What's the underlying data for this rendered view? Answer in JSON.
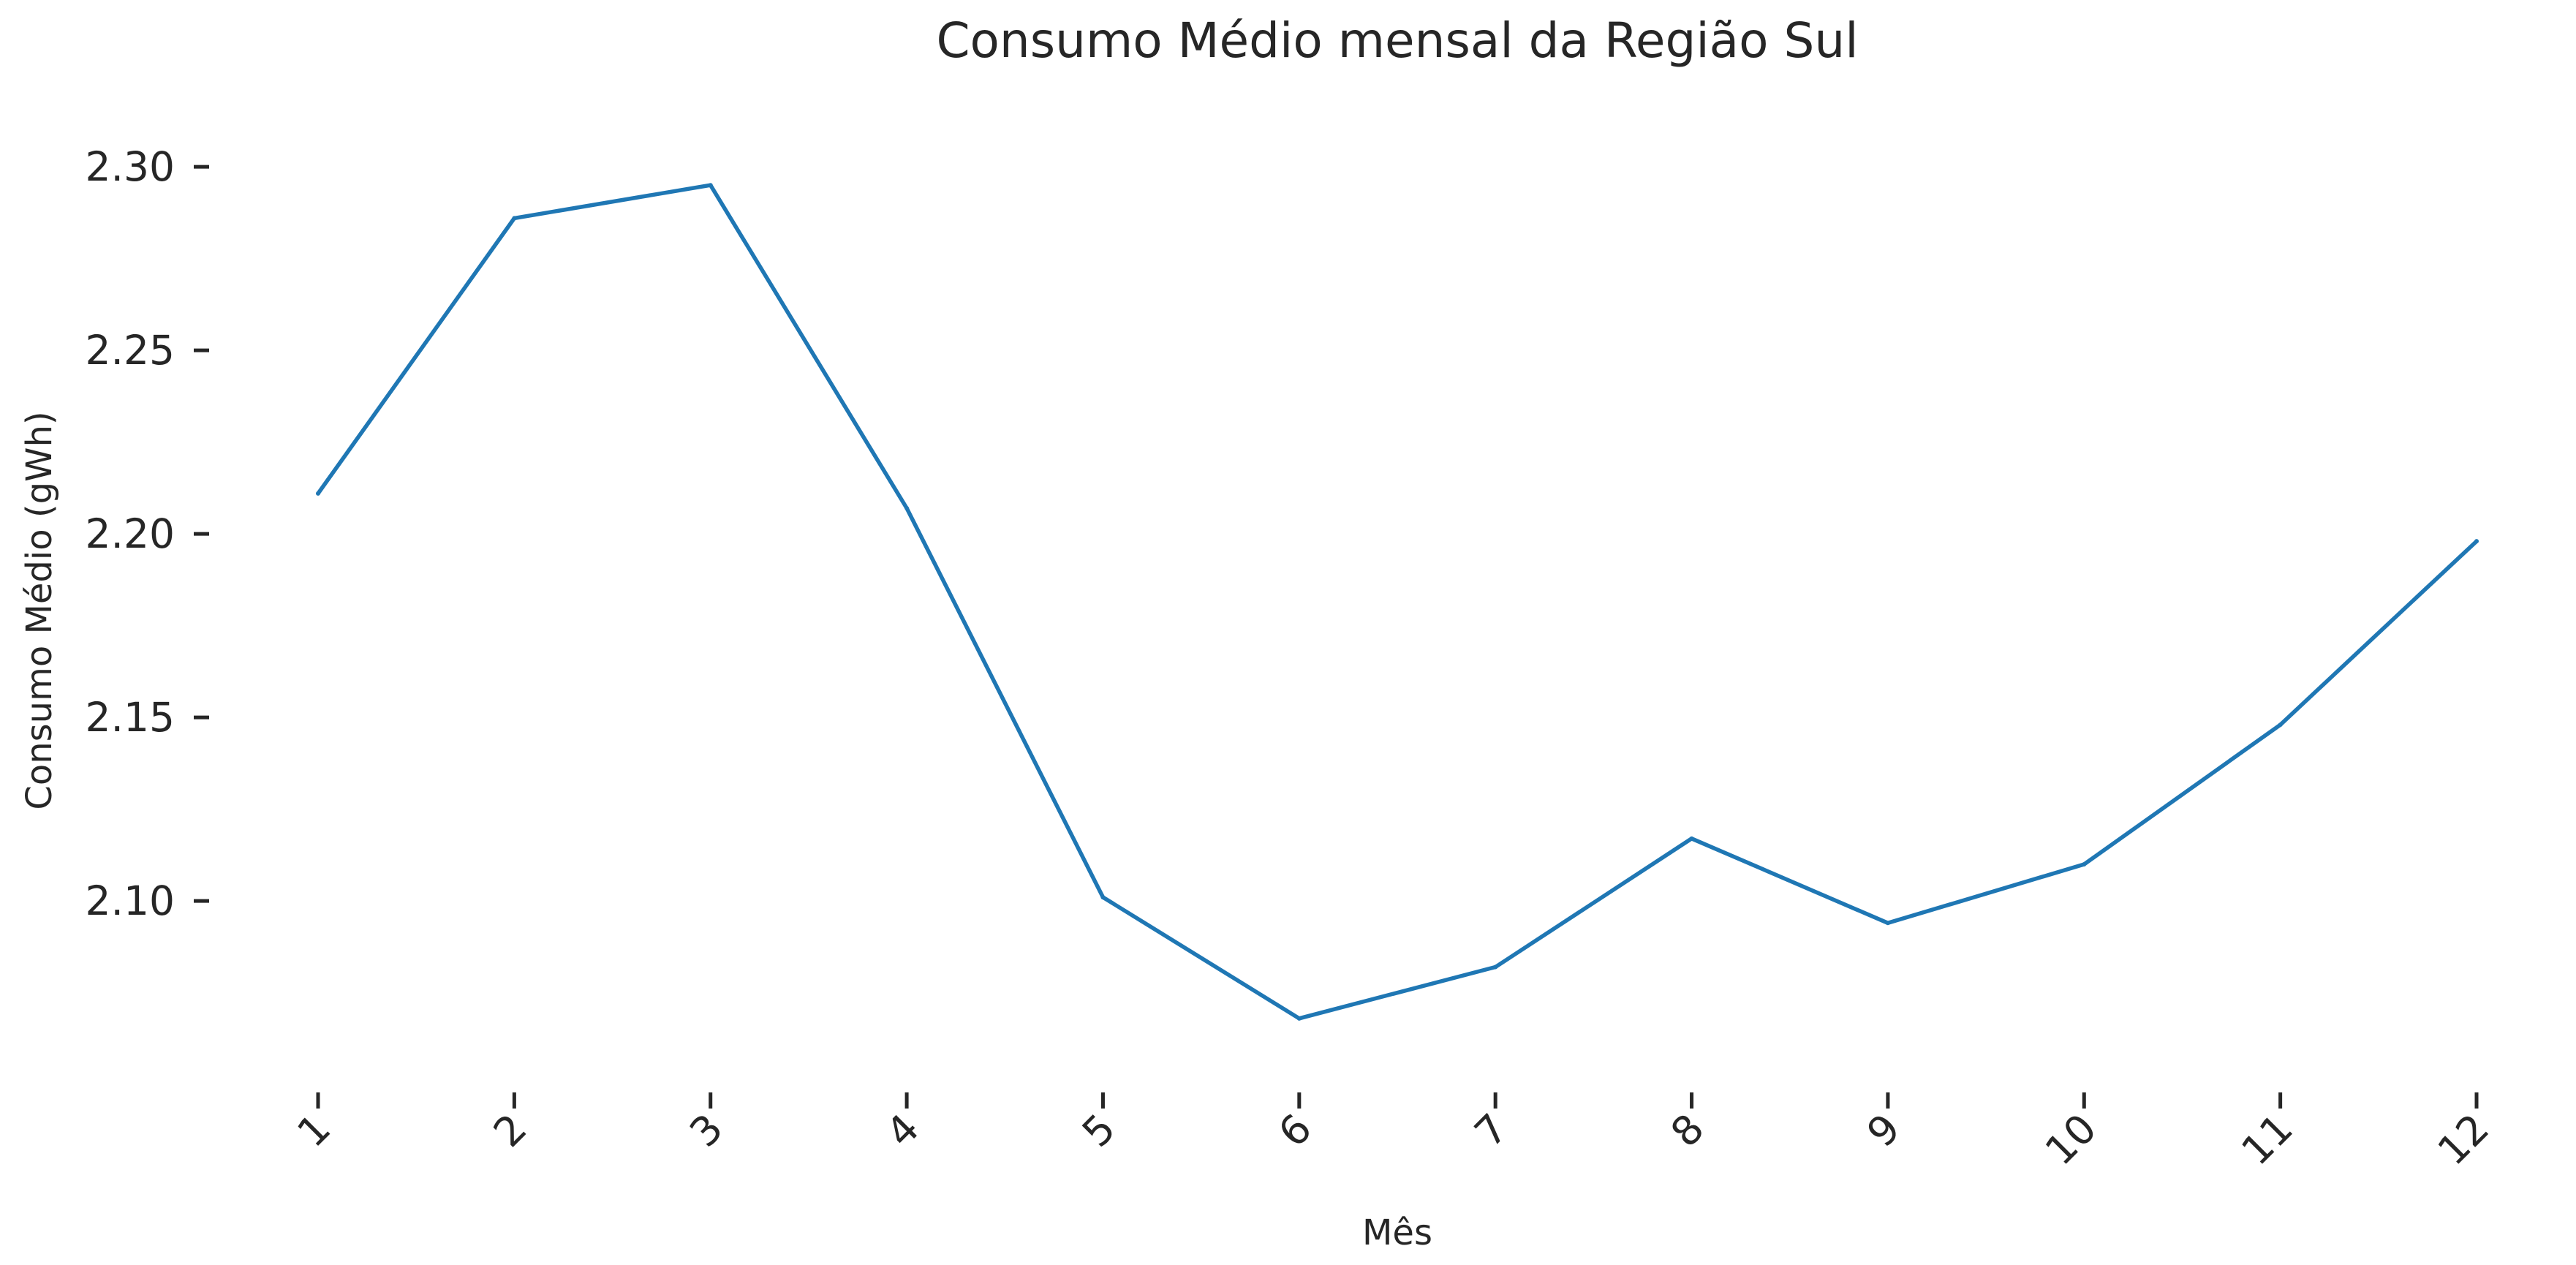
{
  "chart_data": {
    "type": "line",
    "title": "Consumo Médio mensal da Região Sul",
    "xlabel": "Mês",
    "ylabel": "Consumo Médio (gWh)",
    "x": [
      1,
      2,
      3,
      4,
      5,
      6,
      7,
      8,
      9,
      10,
      11,
      12
    ],
    "x_tick_labels": [
      "1",
      "2",
      "3",
      "4",
      "5",
      "6",
      "7",
      "8",
      "9",
      "10",
      "11",
      "12"
    ],
    "y_ticks": [
      2.1,
      2.15,
      2.2,
      2.25,
      2.3
    ],
    "y_tick_labels": [
      "2.10",
      "2.15",
      "2.20",
      "2.25",
      "2.30"
    ],
    "ylim": [
      2.059,
      2.305
    ],
    "xlim": [
      1,
      12
    ],
    "grid": false,
    "series": [
      {
        "values": [
          2.211,
          2.286,
          2.295,
          2.207,
          2.101,
          2.068,
          2.082,
          2.117,
          2.094,
          2.11,
          2.148,
          2.198
        ],
        "color": "#1f77b4"
      }
    ]
  }
}
